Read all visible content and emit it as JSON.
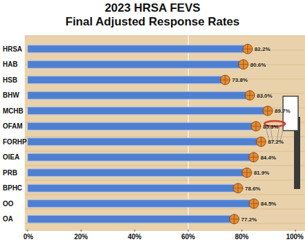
{
  "chart_data": {
    "type": "bar",
    "orientation": "horizontal",
    "title": [
      "2023 HRSA FEVS",
      "Final Adjusted Response Rates"
    ],
    "categories": [
      "HRSA",
      "HAB",
      "HSB",
      "BHW",
      "MCHB",
      "OFAM",
      "FORHP",
      "OIEA",
      "PRB",
      "BPHC",
      "OO",
      "OA"
    ],
    "values": [
      82.2,
      80.6,
      73.8,
      83.0,
      89.7,
      85.3,
      87.2,
      84.4,
      81.9,
      78.6,
      84.5,
      77.2
    ],
    "value_labels": [
      "82.2%",
      "80.6%",
      "73.8%",
      "83.0%",
      "89.7%",
      "85.3%",
      "87.2%",
      "84.4%",
      "81.9%",
      "78.6%",
      "84.5%",
      "77.2%"
    ],
    "data_labels": true,
    "color": "#4f7fd1",
    "xlim": [
      0,
      100
    ],
    "xticks": [
      {
        "value": 0,
        "label": "0%"
      },
      {
        "value": 20,
        "label": "20%"
      },
      {
        "value": 40,
        "label": "40%"
      },
      {
        "value": 60,
        "label": "60%"
      },
      {
        "value": 80,
        "label": "80%"
      },
      {
        "value": 100,
        "label": "100%"
      }
    ],
    "grid": false
  }
}
